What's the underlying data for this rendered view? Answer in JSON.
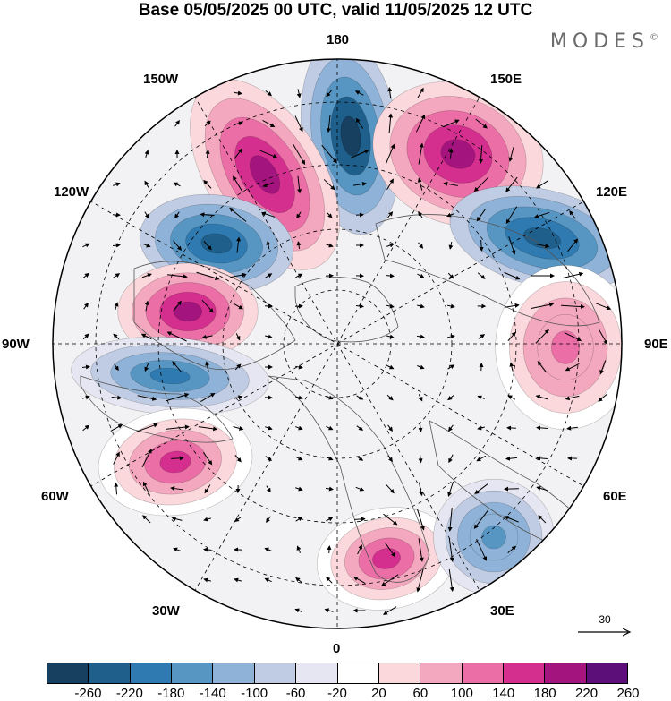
{
  "title": "Base 05/05/2025 00 UTC, valid 11/05/2025 12 UTC",
  "brand": "MODES",
  "brand_mark": "©",
  "longitude_labels": {
    "lon_180": "180",
    "lon_150w": "150W",
    "lon_150e": "150E",
    "lon_120w": "120W",
    "lon_120e": "120E",
    "lon_90w": "90W",
    "lon_90e": "90E",
    "lon_60w": "60W",
    "lon_60e": "60E",
    "lon_30w": "30W",
    "lon_30e": "30E",
    "lon_0": "0"
  },
  "reference_vector": "30",
  "colorbar": {
    "ticks": [
      "-260",
      "-220",
      "-180",
      "-140",
      "-100",
      "-60",
      "-20",
      "20",
      "60",
      "100",
      "140",
      "180",
      "220",
      "260"
    ],
    "colors": [
      "#173f5f",
      "#1f5f8b",
      "#2f7ab0",
      "#5796c3",
      "#8fb3d8",
      "#bfcce4",
      "#e5e6f1",
      "#ffffff",
      "#fbd8dc",
      "#f4a8bf",
      "#ec6ea6",
      "#d42f8f",
      "#a4147f",
      "#5c0f78"
    ]
  },
  "map_features": {
    "projection": "north-polar-stereographic",
    "anomaly_centers": [
      {
        "name": "trough-180",
        "sign": "negative",
        "level": -260
      },
      {
        "name": "ridge-165e",
        "sign": "positive",
        "level": 220
      },
      {
        "name": "ridge-150w",
        "sign": "positive",
        "level": 220
      },
      {
        "name": "trough-120e",
        "sign": "negative",
        "level": -220
      },
      {
        "name": "trough-120w",
        "sign": "negative",
        "level": -220
      },
      {
        "name": "ridge-105w",
        "sign": "positive",
        "level": 220
      },
      {
        "name": "trough-90w",
        "sign": "negative",
        "level": -180
      },
      {
        "name": "ridge-90e",
        "sign": "positive",
        "level": 140
      },
      {
        "name": "ridge-60w",
        "sign": "positive",
        "level": 180
      },
      {
        "name": "ridge-20e",
        "sign": "positive",
        "level": 180
      },
      {
        "name": "trough-45e",
        "sign": "negative",
        "level": -140
      }
    ]
  }
}
